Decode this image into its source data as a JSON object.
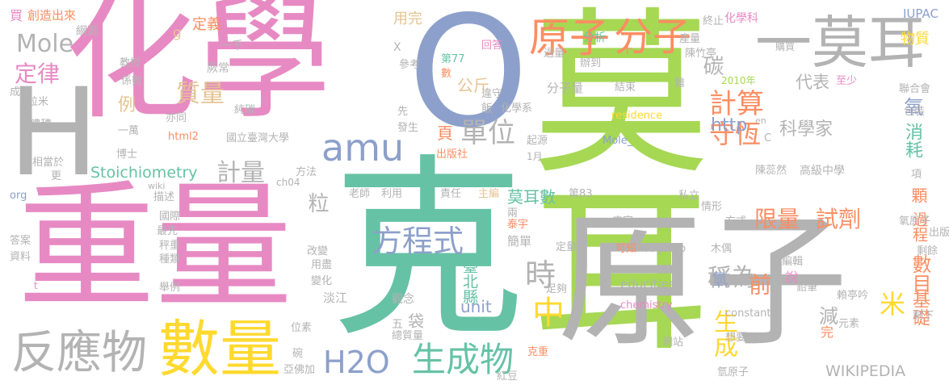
{
  "palette": {
    "pink": "#e78ac3",
    "green": "#a6d854",
    "teal": "#66c2a5",
    "grey": "#b3b3b3",
    "blue": "#8da0cb",
    "orange": "#fc8d62",
    "yellow": "#ffd92f",
    "tan": "#e5c494"
  },
  "words": {
    "w_huaxue": "化學",
    "w_ke": "克",
    "w_moer1": "莫耳",
    "w_moer2": "一莫耳",
    "w_yuanzi": "原子",
    "w_zhongliang": "重量",
    "w_o": "O",
    "w_h": "H",
    "w_shuliang": "數量",
    "w_fanyingwu": "反應物",
    "w_yuanzi2": "原子",
    "w_fenzi": "分子",
    "w_amu": "amu",
    "w_h2o": "H2O",
    "w_shengchengwu": "生成物",
    "w_fangchengshi": "方程式",
    "w_mole": "Mole",
    "w_dinglv": "定律",
    "w_zhiliang": "質量",
    "w_danwei": "單位",
    "w_jiliang": "計量",
    "w_jisuan": "計算",
    "w_shouheng": "守恆",
    "w_stoich": "Stoichiometry",
    "w_xianliang": "限量",
    "w_shiji": "試劑",
    "w_chengwei": "稱為",
    "w_shi": "時",
    "w_kexuejia": "科學家",
    "w_daibiao": "代表",
    "w_tan": "碳",
    "w_yang": "氧",
    "w_xiaohao": "消耗",
    "w_shengcheng": "生成",
    "w_zhong": "中",
    "w_mi": "米",
    "w_jichu": "基礎",
    "w_shumu": "數目",
    "w_qian": "前",
    "w_wikipedia": "WIKIPEDIA",
    "w_moershu": "莫耳數",
    "w_http": "http",
    "w_unit": "unit",
    "w_gongjin": "公斤",
    "w_li": "粒",
    "w_yong": "用完",
    "w_dingyi": "定義",
    "w_g": "g",
    "w_mai": "買",
    "w_li2": "例",
    "w_ye": "頁",
    "w_guocheng": "過程",
    "w_ke2": "顆",
    "w_taibei": "臺北縣",
    "w_jian": "減",
    "w_wuliangzhi": "物質",
    "w_iupac": "IUPAC",
    "w_huaxueke": "化學科",
    "w_fenxi": "分析",
    "w_zhongzhi": "終止",
    "w_chuangzao": "創造出來",
    "w_wangye": "網頁",
    "w_yiqian": "一千",
    "w_jiaoshou": "教授",
    "w_xishu": "係數",
    "w_changchang": "厥常",
    "w_dijieti": "第77",
    "w_huida": "回答",
    "w_cankao": "參考",
    "w_shu": "數",
    "w_weishou": "違守",
    "w_guoliang": "過量",
    "w_bandao": "辦到",
    "w_chanliang": "產量",
    "w_chenzhuting": "陳竹亭",
    "w_gouai": "購買",
    "w_fenziliang": "分子量",
    "w_jieshu": "結束",
    "w_zhishao": "至少",
    "w_nian": "2010年",
    "w_lianhehui": "聯合會",
    "w_baozhuang": "包裝",
    "w_chuntan": "純碳",
    "w_yijian": "亦同",
    "w_huaxuexi": "化學系",
    "w_residence": "residence",
    "w_moleu": "Mole_",
    "w_en": "en",
    "w_c": "C",
    "w_ndu": "國立臺灣大學",
    "w_html2": "html2",
    "w_faseng": "發生",
    "w_qiyuan": "起源",
    "w_chubanshe": "出版社",
    "w_yiyue": "1月",
    "w_fangfa": "方法",
    "w_boshi": "博士",
    "w_ch04": "ch04",
    "w_gaoji": "高級中學",
    "w_chenruiran": "陳蕊然",
    "w_ding": "項",
    "w_wiki": "wiki",
    "w_miaoshu": "描述",
    "w_laoshi": "老師",
    "w_liyong": "利用",
    "w_zeren": "責任",
    "w_zhubian": "主編",
    "w_di83": "第83",
    "w_sili": "私立",
    "w_qingxing": "情形",
    "w_fangshi": "方式",
    "w_dianjia": "店家",
    "w_guoji": "國際",
    "w_zuixian": "最先",
    "w_chengzhong": "秤重",
    "w_zhonglei": "種類",
    "w_gaibian": "改變",
    "w_yongjin": "用盡",
    "w_keyi": "可知",
    "w_avogadro": "Avogadro",
    "w_muou": "木偶",
    "w_bianji": "編輯",
    "w_educities": "educities",
    "w_chemistry": "chemistry",
    "w_constant": "constant",
    "w_qianbi": "鉛筆",
    "w_laitingyin": "賴亭吟",
    "w_yuansu": "元素",
    "w_shengxia": "剩下",
    "w_xiangyao": "想要",
    "w_wangzhan": "網站",
    "w_qingyuanzi": "氫原子",
    "w_yuanzi_small": "氧原子",
    "w_qing": "氫",
    "w_shuo": "說",
    "w_danchun": "簡單",
    "w_tianyu": "泰宇",
    "w_liang": "兩",
    "w_guannian": "觀念",
    "w_wu": "五",
    "w_dai": "袋",
    "w_zongzhiliang": "總質量",
    "w_hongdou": "紅豆",
    "w_kezhong": "克重",
    "w_yafujia": "亞佛加",
    "w_wan": "碗",
    "w_weisu": "位素",
    "w_danjiang": "淡江",
    "w_bianhua": "變化",
    "w_juli": "舉例",
    "w_daan": "答案",
    "w_ziliao": "資料",
    "w_xiangdangyu": "相當於",
    "w_geng": "更",
    "w_org": "org",
    "w_tiji": "體積",
    "w_yiwan": "一萬",
    "w_limi": "粒米",
    "w_cheng": "成",
    "w_t": "t",
    "w_x": "X",
    "w_fan": "飯",
    "w_nan": "難",
    "w_zuge": "足夠",
    "w_dingliang": "定量",
    "w_wan2": "完",
    "w_chuban": "出版",
    "w_shengyu": "剩餘",
    "w_plus": "十",
    "w_xian": "先"
  }
}
